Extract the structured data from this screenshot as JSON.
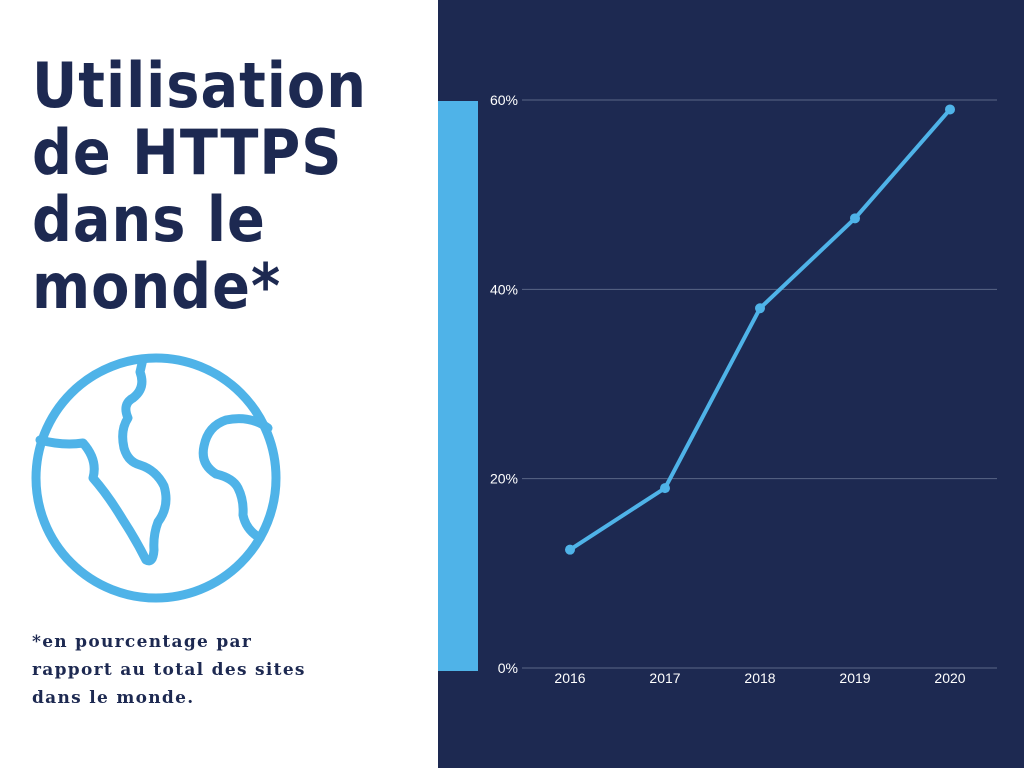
{
  "title": "Utilisation de HTTPS dans le monde*",
  "footnote": "*en pourcentage par rapport au total des sites dans le monde.",
  "colors": {
    "navy": "#1d2951",
    "accent": "#4fb3e8",
    "grid": "#5a6686",
    "text": "#ffffff"
  },
  "icon": "globe-icon",
  "chart_data": {
    "type": "line",
    "categories": [
      "2016",
      "2017",
      "2018",
      "2019",
      "2020"
    ],
    "series": [
      {
        "values": [
          12.5,
          19,
          38,
          47.5,
          59
        ]
      }
    ],
    "ylim": [
      0,
      60
    ],
    "yticks": [
      0,
      20,
      40,
      60
    ],
    "ytick_labels": [
      "0%",
      "20%",
      "40%",
      "60%"
    ],
    "grid": true,
    "legend": false
  }
}
